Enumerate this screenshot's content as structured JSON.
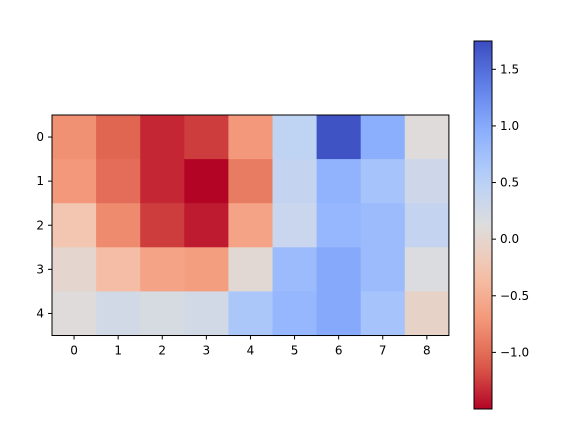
{
  "chart_data": {
    "type": "heatmap",
    "title": "",
    "xlabel": "",
    "ylabel": "",
    "colormap": "coolwarm",
    "colorbar": {
      "vmin": -1.5,
      "vmax": 1.75,
      "ticks": [
        1.5,
        1.0,
        0.5,
        0.0,
        -0.5,
        -1.0
      ],
      "tick_labels": [
        "1.5",
        "1.0",
        "0.5",
        "0.0",
        "−0.5",
        "−1.0"
      ]
    },
    "x_ticks": [
      "0",
      "1",
      "2",
      "3",
      "4",
      "5",
      "6",
      "7",
      "8"
    ],
    "y_ticks": [
      "0",
      "1",
      "2",
      "3",
      "4"
    ],
    "values": [
      [
        -0.75,
        -1.05,
        -1.35,
        -1.25,
        -0.7,
        0.45,
        1.7,
        0.95,
        0.1
      ],
      [
        -0.7,
        -1.0,
        -1.35,
        -1.5,
        -0.9,
        0.4,
        0.9,
        0.7,
        0.3
      ],
      [
        -0.25,
        -0.8,
        -1.25,
        -1.4,
        -0.6,
        0.35,
        0.85,
        0.8,
        0.4
      ],
      [
        0.0,
        -0.35,
        -0.6,
        -0.65,
        0.05,
        0.8,
        1.0,
        0.8,
        0.15
      ],
      [
        0.1,
        0.25,
        0.2,
        0.25,
        0.65,
        0.85,
        1.0,
        0.7,
        -0.05
      ]
    ],
    "grid": false,
    "legend": "none"
  }
}
